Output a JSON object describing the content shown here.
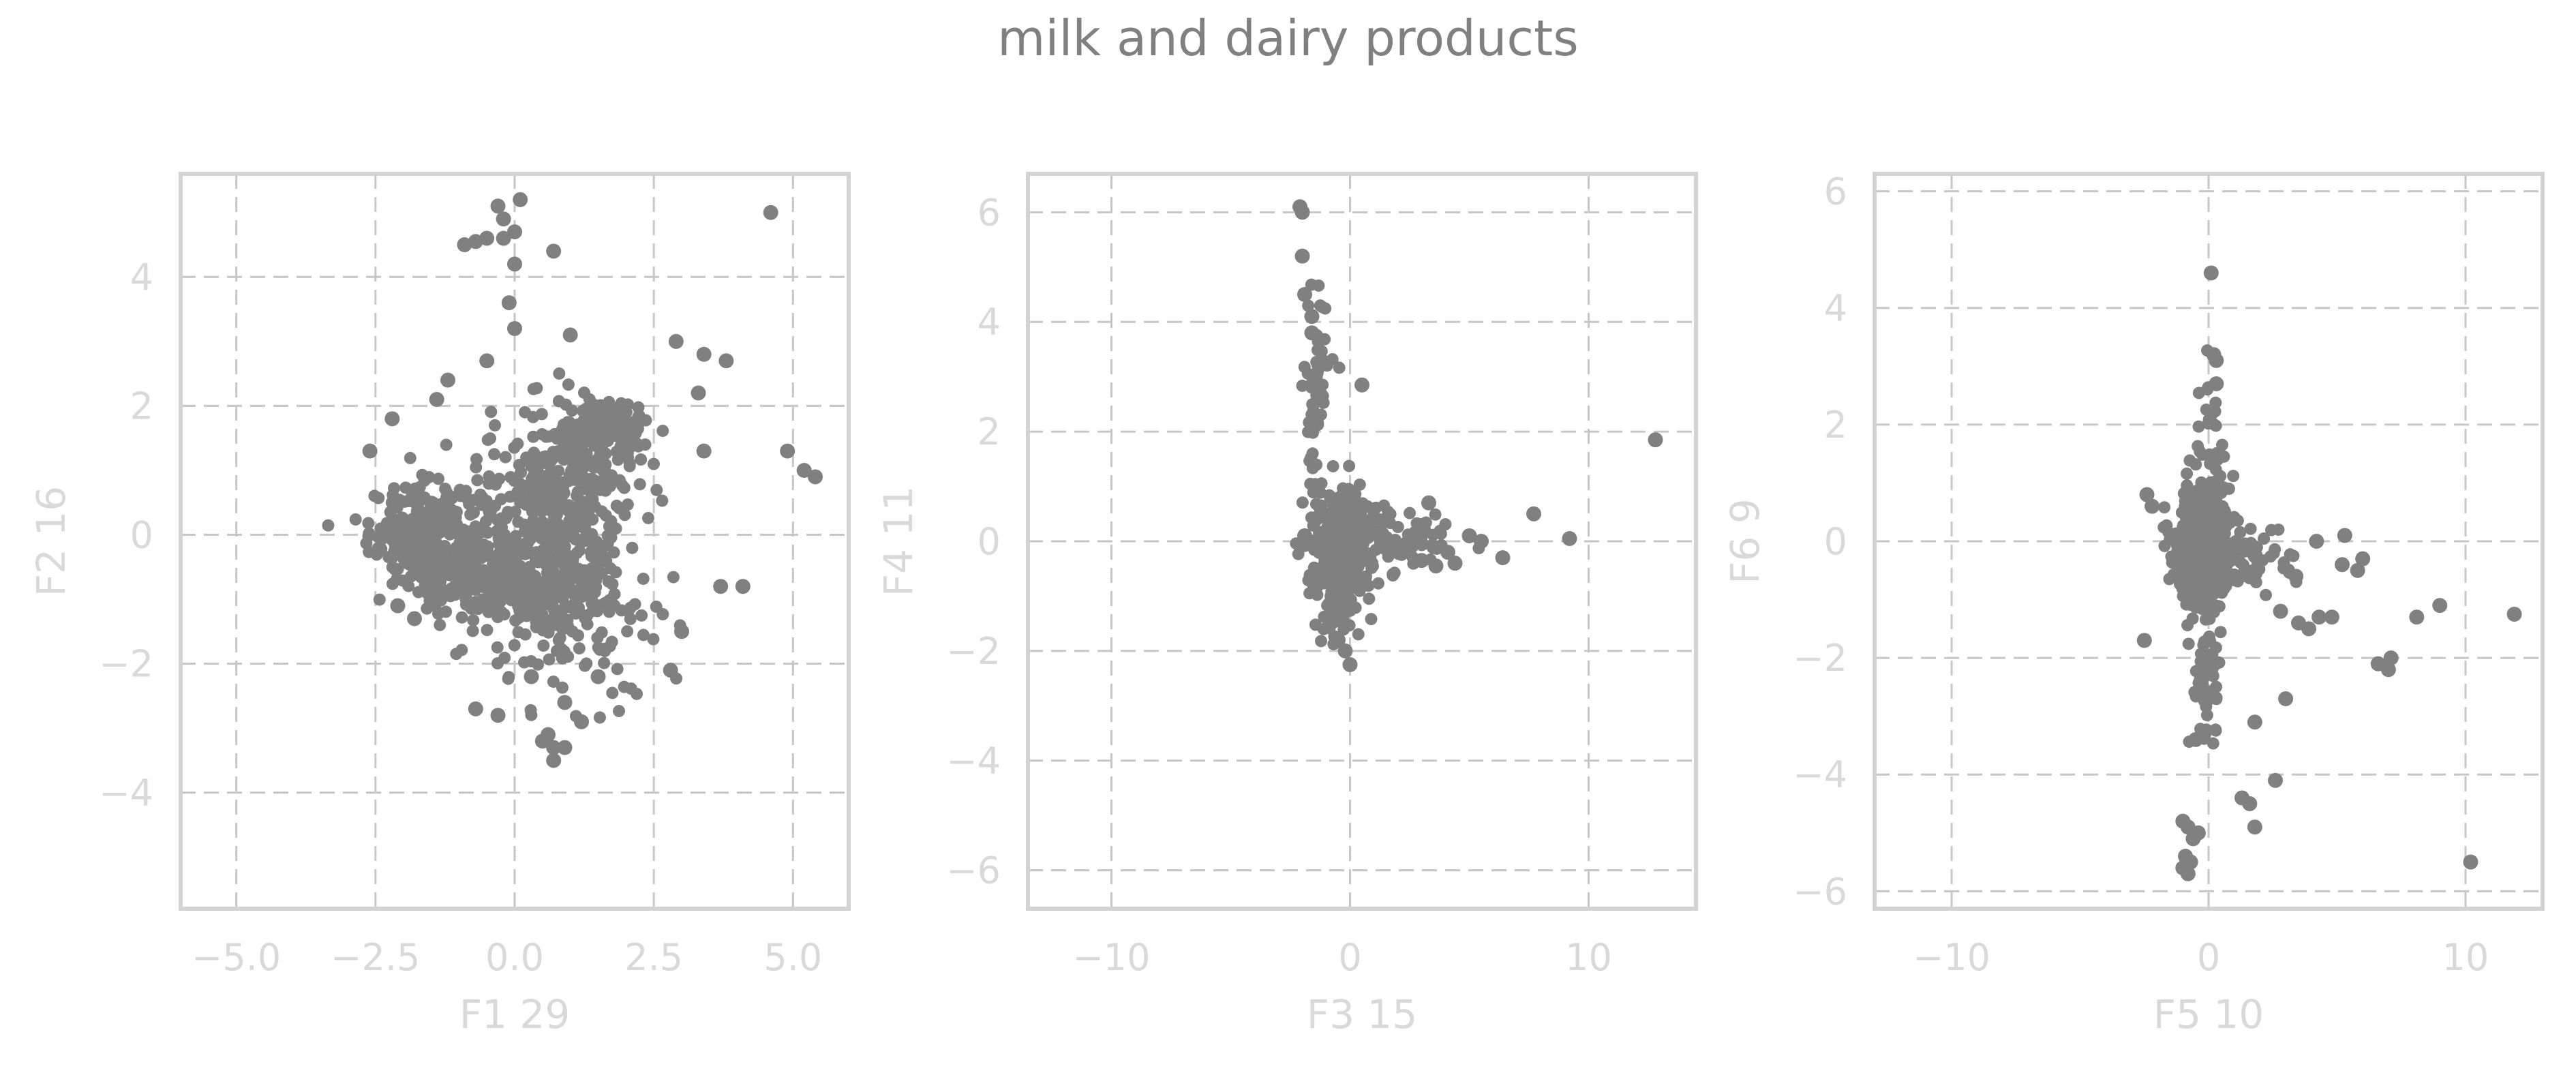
{
  "title": "milk and dairy products",
  "colors": {
    "points": "#808080",
    "grid": "#c6c6c6",
    "frame": "#d3d3d3",
    "labels": "#d9d9d9",
    "title": "#808080"
  },
  "chart_data": [
    {
      "type": "scatter",
      "xlabel": "F1 29",
      "ylabel": "F2 16",
      "xlim": [
        -6.0,
        6.0
      ],
      "ylim": [
        -5.8,
        5.6
      ],
      "xticks": [
        -5.0,
        -2.5,
        0.0,
        2.5,
        5.0
      ],
      "xtick_labels": [
        "−5.0",
        "−2.5",
        "0.0",
        "2.5",
        "5.0"
      ],
      "yticks": [
        -4,
        -2,
        0,
        2,
        4
      ],
      "ytick_labels": [
        "−4",
        "−2",
        "0",
        "2",
        "4"
      ],
      "grid": true,
      "clusters": [
        {
          "cx": -1.6,
          "cy": 0.0,
          "sx": 0.5,
          "sy": 0.4,
          "n": 260
        },
        {
          "cx": -0.7,
          "cy": -0.5,
          "sx": 0.6,
          "sy": 0.4,
          "n": 200
        },
        {
          "cx": 0.8,
          "cy": 0.6,
          "sx": 0.7,
          "sy": 0.6,
          "n": 300
        },
        {
          "cx": 1.6,
          "cy": 1.6,
          "sx": 0.4,
          "sy": 0.25,
          "n": 180
        },
        {
          "cx": 0.6,
          "cy": -0.8,
          "sx": 0.7,
          "sy": 0.35,
          "n": 200
        },
        {
          "cx": 1.0,
          "cy": -1.7,
          "sx": 0.9,
          "sy": 0.5,
          "n": 80
        }
      ],
      "points": [
        {
          "x": 4.6,
          "y": 5.0
        },
        {
          "x": 4.9,
          "y": 1.3
        },
        {
          "x": 5.2,
          "y": 1.0
        },
        {
          "x": 5.4,
          "y": 0.9
        },
        {
          "x": 0.1,
          "y": 5.2
        },
        {
          "x": -0.3,
          "y": 5.1
        },
        {
          "x": -0.2,
          "y": 4.9
        },
        {
          "x": 0.0,
          "y": 4.7
        },
        {
          "x": -0.5,
          "y": 4.6
        },
        {
          "x": -0.9,
          "y": 4.5
        },
        {
          "x": -0.7,
          "y": 4.55
        },
        {
          "x": -0.2,
          "y": 4.6
        },
        {
          "x": 0.7,
          "y": 4.4
        },
        {
          "x": 0.0,
          "y": 4.2
        },
        {
          "x": -0.1,
          "y": 3.6
        },
        {
          "x": 0.0,
          "y": 3.2
        },
        {
          "x": 3.8,
          "y": 2.7
        },
        {
          "x": 3.4,
          "y": 2.8
        },
        {
          "x": 2.9,
          "y": 3.0
        },
        {
          "x": -2.6,
          "y": 1.3
        },
        {
          "x": 3.7,
          "y": -0.8
        },
        {
          "x": 4.1,
          "y": -0.8
        },
        {
          "x": 3.0,
          "y": -1.5
        },
        {
          "x": 2.8,
          "y": -2.1
        },
        {
          "x": 0.6,
          "y": -3.1
        },
        {
          "x": 0.7,
          "y": -3.3
        },
        {
          "x": 0.5,
          "y": -3.2
        },
        {
          "x": 0.9,
          "y": -3.3
        },
        {
          "x": 0.7,
          "y": -3.5
        },
        {
          "x": -0.7,
          "y": -2.7
        },
        {
          "x": -0.3,
          "y": -2.8
        },
        {
          "x": 0.3,
          "y": -2.2
        },
        {
          "x": 1.2,
          "y": -2.9
        },
        {
          "x": 0.9,
          "y": -2.6
        },
        {
          "x": 1.5,
          "y": -2.2
        },
        {
          "x": -1.2,
          "y": 2.4
        },
        {
          "x": -0.5,
          "y": 2.7
        },
        {
          "x": 1.0,
          "y": 3.1
        },
        {
          "x": -1.4,
          "y": 2.1
        },
        {
          "x": 3.3,
          "y": 2.2
        },
        {
          "x": 3.4,
          "y": 1.3
        },
        {
          "x": -2.2,
          "y": 1.8
        },
        {
          "x": -2.1,
          "y": -1.1
        },
        {
          "x": -1.8,
          "y": -1.3
        }
      ]
    },
    {
      "type": "scatter",
      "xlabel": "F3 15",
      "ylabel": "F4 11",
      "xlim": [
        -13.5,
        14.5
      ],
      "ylim": [
        -6.7,
        6.7
      ],
      "xticks": [
        -10,
        0,
        10
      ],
      "xtick_labels": [
        "−10",
        "0",
        "10"
      ],
      "yticks": [
        -6,
        -4,
        -2,
        0,
        2,
        4,
        6
      ],
      "ytick_labels": [
        "−6",
        "−4",
        "−2",
        "0",
        "2",
        "4",
        "6"
      ],
      "grid": true,
      "clusters": [
        {
          "cx": -0.4,
          "cy": -0.1,
          "sx": 0.6,
          "sy": 0.45,
          "n": 450
        },
        {
          "cx": 1.5,
          "cy": 0.0,
          "sx": 1.3,
          "sy": 0.35,
          "n": 90
        },
        {
          "cx": -1.4,
          "cy": 2.6,
          "sx": 0.25,
          "sy": 0.9,
          "n": 60
        },
        {
          "cx": -0.6,
          "cy": -1.2,
          "sx": 0.4,
          "sy": 0.4,
          "n": 40
        }
      ],
      "points": [
        {
          "x": 12.8,
          "y": 1.85
        },
        {
          "x": 9.2,
          "y": 0.05
        },
        {
          "x": 7.7,
          "y": 0.5
        },
        {
          "x": 6.4,
          "y": -0.3
        },
        {
          "x": 5.5,
          "y": 0.0
        },
        {
          "x": 5.0,
          "y": 0.1
        },
        {
          "x": 4.4,
          "y": -0.4
        },
        {
          "x": 3.6,
          "y": -0.45
        },
        {
          "x": 3.0,
          "y": -0.35
        },
        {
          "x": 3.3,
          "y": 0.7
        },
        {
          "x": 4.1,
          "y": -0.2
        },
        {
          "x": 0.5,
          "y": 2.85
        },
        {
          "x": -2.1,
          "y": 6.1
        },
        {
          "x": -2.0,
          "y": 6.0
        },
        {
          "x": -2.0,
          "y": 5.2
        },
        {
          "x": -1.9,
          "y": 4.5
        },
        {
          "x": -1.6,
          "y": 4.1
        },
        {
          "x": -1.6,
          "y": 3.8
        },
        {
          "x": -1.9,
          "y": 0.1
        },
        {
          "x": -0.2,
          "y": -2.0
        },
        {
          "x": 0.0,
          "y": -2.25
        },
        {
          "x": -0.5,
          "y": -1.8
        }
      ]
    },
    {
      "type": "scatter",
      "xlabel": "F5 10",
      "ylabel": "F6 9",
      "xlim": [
        -13.0,
        13.0
      ],
      "ylim": [
        -6.3,
        6.3
      ],
      "xticks": [
        -10,
        0,
        10
      ],
      "xtick_labels": [
        "−10",
        "0",
        "10"
      ],
      "yticks": [
        -6,
        -4,
        -2,
        0,
        2,
        4,
        6
      ],
      "ytick_labels": [
        "−6",
        "−4",
        "−2",
        "0",
        "2",
        "4",
        "6"
      ],
      "grid": true,
      "clusters": [
        {
          "cx": -0.1,
          "cy": -0.1,
          "sx": 0.6,
          "sy": 0.5,
          "n": 450
        },
        {
          "cx": 0.0,
          "cy": 1.3,
          "sx": 0.25,
          "sy": 0.6,
          "n": 50
        },
        {
          "cx": -0.1,
          "cy": -2.3,
          "sx": 0.3,
          "sy": 0.6,
          "n": 60
        },
        {
          "cx": 1.8,
          "cy": -0.3,
          "sx": 0.9,
          "sy": 0.3,
          "n": 40
        }
      ],
      "points": [
        {
          "x": 11.9,
          "y": -1.25
        },
        {
          "x": 10.2,
          "y": -5.5
        },
        {
          "x": 9.0,
          "y": -1.1
        },
        {
          "x": 8.1,
          "y": -1.3
        },
        {
          "x": 7.1,
          "y": -2.0
        },
        {
          "x": 7.0,
          "y": -2.2
        },
        {
          "x": 6.6,
          "y": -2.1
        },
        {
          "x": 6.0,
          "y": -0.3
        },
        {
          "x": 5.8,
          "y": -0.5
        },
        {
          "x": 5.3,
          "y": 0.1
        },
        {
          "x": 5.2,
          "y": -0.4
        },
        {
          "x": 4.8,
          "y": -1.3
        },
        {
          "x": 4.3,
          "y": -1.3
        },
        {
          "x": 3.9,
          "y": -1.5
        },
        {
          "x": 3.5,
          "y": -1.4
        },
        {
          "x": 3.4,
          "y": -0.6
        },
        {
          "x": 4.2,
          "y": 0.0
        },
        {
          "x": 2.8,
          "y": -1.2
        },
        {
          "x": 3.0,
          "y": -2.7
        },
        {
          "x": 2.6,
          "y": -4.1
        },
        {
          "x": 1.8,
          "y": -3.1
        },
        {
          "x": 1.6,
          "y": -4.5
        },
        {
          "x": 1.8,
          "y": -4.9
        },
        {
          "x": 1.3,
          "y": -4.4
        },
        {
          "x": 0.1,
          "y": 4.6
        },
        {
          "x": 0.2,
          "y": 3.2
        },
        {
          "x": 0.3,
          "y": 3.1
        },
        {
          "x": 0.3,
          "y": 2.7
        },
        {
          "x": -0.8,
          "y": -5.7
        },
        {
          "x": -1.0,
          "y": -5.6
        },
        {
          "x": -0.9,
          "y": -5.4
        },
        {
          "x": -0.7,
          "y": -5.5
        },
        {
          "x": -1.0,
          "y": -4.8
        },
        {
          "x": -0.8,
          "y": -4.9
        },
        {
          "x": -0.4,
          "y": -5.0
        },
        {
          "x": -0.6,
          "y": -5.1
        },
        {
          "x": -0.5,
          "y": -3.4
        },
        {
          "x": -2.4,
          "y": 0.8
        },
        {
          "x": -2.2,
          "y": 0.6
        },
        {
          "x": -2.5,
          "y": -1.7
        }
      ]
    }
  ]
}
